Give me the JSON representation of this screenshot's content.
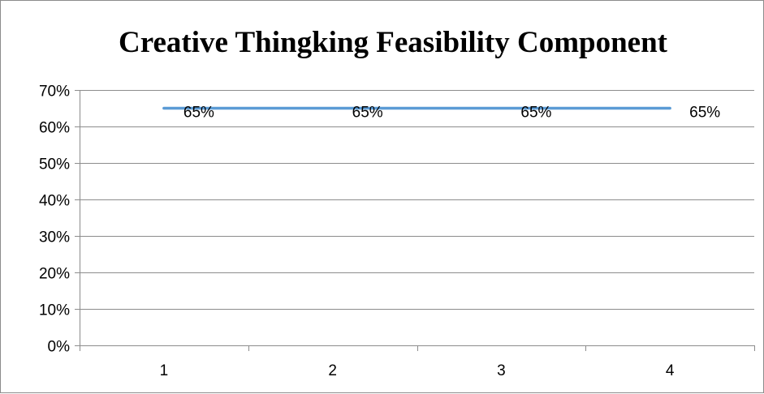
{
  "chart_data": {
    "type": "line",
    "title": "Creative Thingking Feasibility Component",
    "xlabel": "",
    "ylabel": "",
    "categories": [
      "1",
      "2",
      "3",
      "4"
    ],
    "series": [
      {
        "values": [
          0.65,
          0.65,
          0.65,
          0.65
        ],
        "data_labels": [
          "65%",
          "65%",
          "65%",
          "65%"
        ],
        "color": "#5b9bd5"
      }
    ],
    "ylim": [
      0,
      0.7
    ],
    "y_ticks": [
      0,
      0.1,
      0.2,
      0.3,
      0.4,
      0.5,
      0.6,
      0.7
    ],
    "y_tick_labels": [
      "0%",
      "10%",
      "20%",
      "30%",
      "40%",
      "50%",
      "60%",
      "70%"
    ],
    "grid": true,
    "grid_color": "#8c8c8c",
    "axis_color": "#8c8c8c",
    "legend": "none"
  }
}
